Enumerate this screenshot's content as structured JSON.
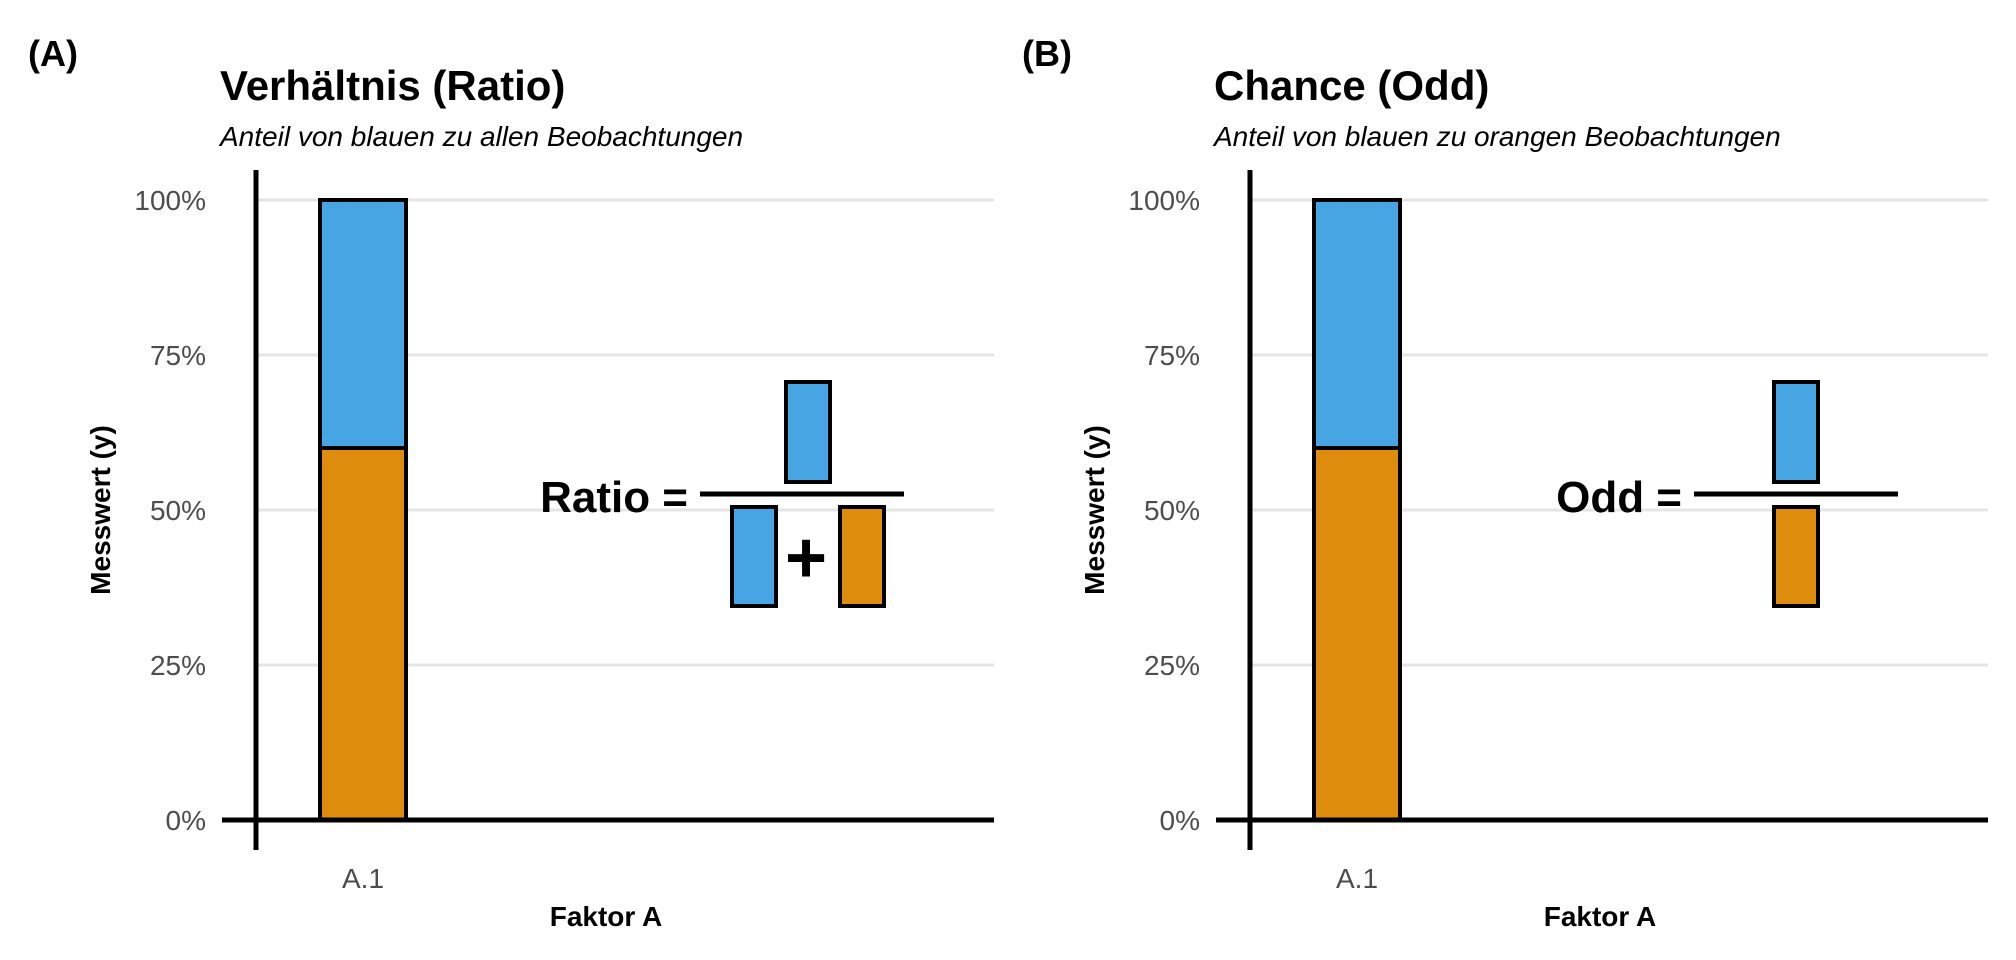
{
  "colors": {
    "blue": "#47a5e3",
    "orange": "#de8c0b",
    "grid": "#e5e5e5",
    "axis": "#000000",
    "tick": "#4d4d4d"
  },
  "chart_data": [
    {
      "type": "bar",
      "panel_label": "(A)",
      "title": "Verhältnis (Ratio)",
      "subtitle": "Anteil von blauen zu allen Beobachtungen",
      "xlabel": "Faktor A",
      "ylabel": "Messwert (y)",
      "categories": [
        "A.1"
      ],
      "stacked": true,
      "series": [
        {
          "color": "orange",
          "values": [
            0.6
          ]
        },
        {
          "color": "blue",
          "values": [
            0.4
          ]
        }
      ],
      "ylim": [
        0,
        1
      ],
      "yticks": [
        0,
        0.25,
        0.5,
        0.75,
        1
      ],
      "ytick_labels": [
        "0%",
        "25%",
        "50%",
        "75%",
        "100%"
      ],
      "grid": "horizontal",
      "formula": {
        "label": "Ratio =",
        "operator": "+",
        "numerator": [
          "blue"
        ],
        "denominator": [
          "blue",
          "orange"
        ]
      }
    },
    {
      "type": "bar",
      "panel_label": "(B)",
      "title": "Chance (Odd)",
      "subtitle": "Anteil von blauen zu orangen Beobachtungen",
      "xlabel": "Faktor A",
      "ylabel": "Messwert (y)",
      "categories": [
        "A.1"
      ],
      "stacked": true,
      "series": [
        {
          "color": "orange",
          "values": [
            0.6
          ]
        },
        {
          "color": "blue",
          "values": [
            0.4
          ]
        }
      ],
      "ylim": [
        0,
        1
      ],
      "yticks": [
        0,
        0.25,
        0.5,
        0.75,
        1
      ],
      "ytick_labels": [
        "0%",
        "25%",
        "50%",
        "75%",
        "100%"
      ],
      "grid": "horizontal",
      "formula": {
        "label": "Odd =",
        "operator": "",
        "numerator": [
          "blue"
        ],
        "denominator": [
          "orange"
        ]
      }
    }
  ]
}
